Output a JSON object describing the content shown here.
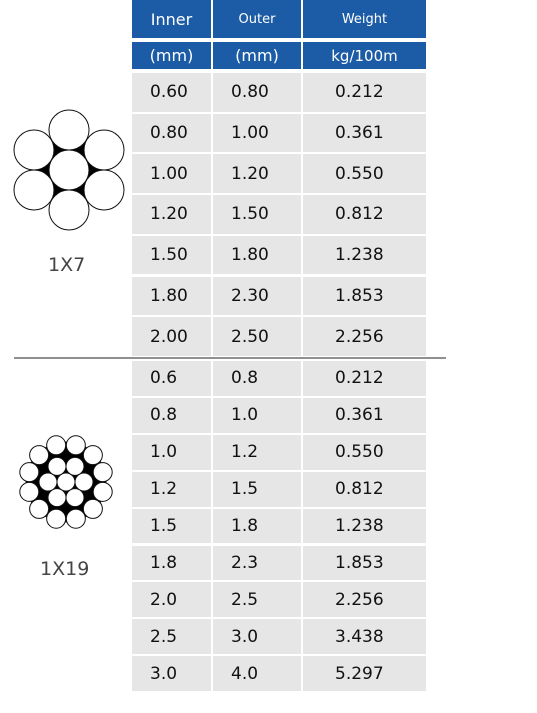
{
  "header": [
    [
      "Inner",
      "Outer",
      "Weight"
    ],
    [
      "(mm)",
      "(mm)",
      "kg/100m"
    ]
  ],
  "groups": [
    {
      "label": "1X7",
      "rows": [
        [
          "0.60",
          "0.80",
          "0.212"
        ],
        [
          "0.80",
          "1.00",
          "0.361"
        ],
        [
          "1.00",
          "1.20",
          "0.550"
        ],
        [
          "1.20",
          "1.50",
          "0.812"
        ],
        [
          "1.50",
          "1.80",
          "1.238"
        ],
        [
          "1.80",
          "2.30",
          "1.853"
        ],
        [
          "2.00",
          "2.50",
          "2.256"
        ]
      ]
    },
    {
      "label": "1X19",
      "rows": [
        [
          "0.6",
          "0.8",
          "0.212"
        ],
        [
          "0.8",
          "1.0",
          "0.361"
        ],
        [
          "1.0",
          "1.2",
          "0.550"
        ],
        [
          "1.2",
          "1.5",
          "0.812"
        ],
        [
          "1.5",
          "1.8",
          "1.238"
        ],
        [
          "1.8",
          "2.3",
          "1.853"
        ],
        [
          "2.0",
          "2.5",
          "2.256"
        ],
        [
          "2.5",
          "3.0",
          "3.438"
        ],
        [
          "3.0",
          "4.0",
          "5.297"
        ]
      ]
    }
  ]
}
